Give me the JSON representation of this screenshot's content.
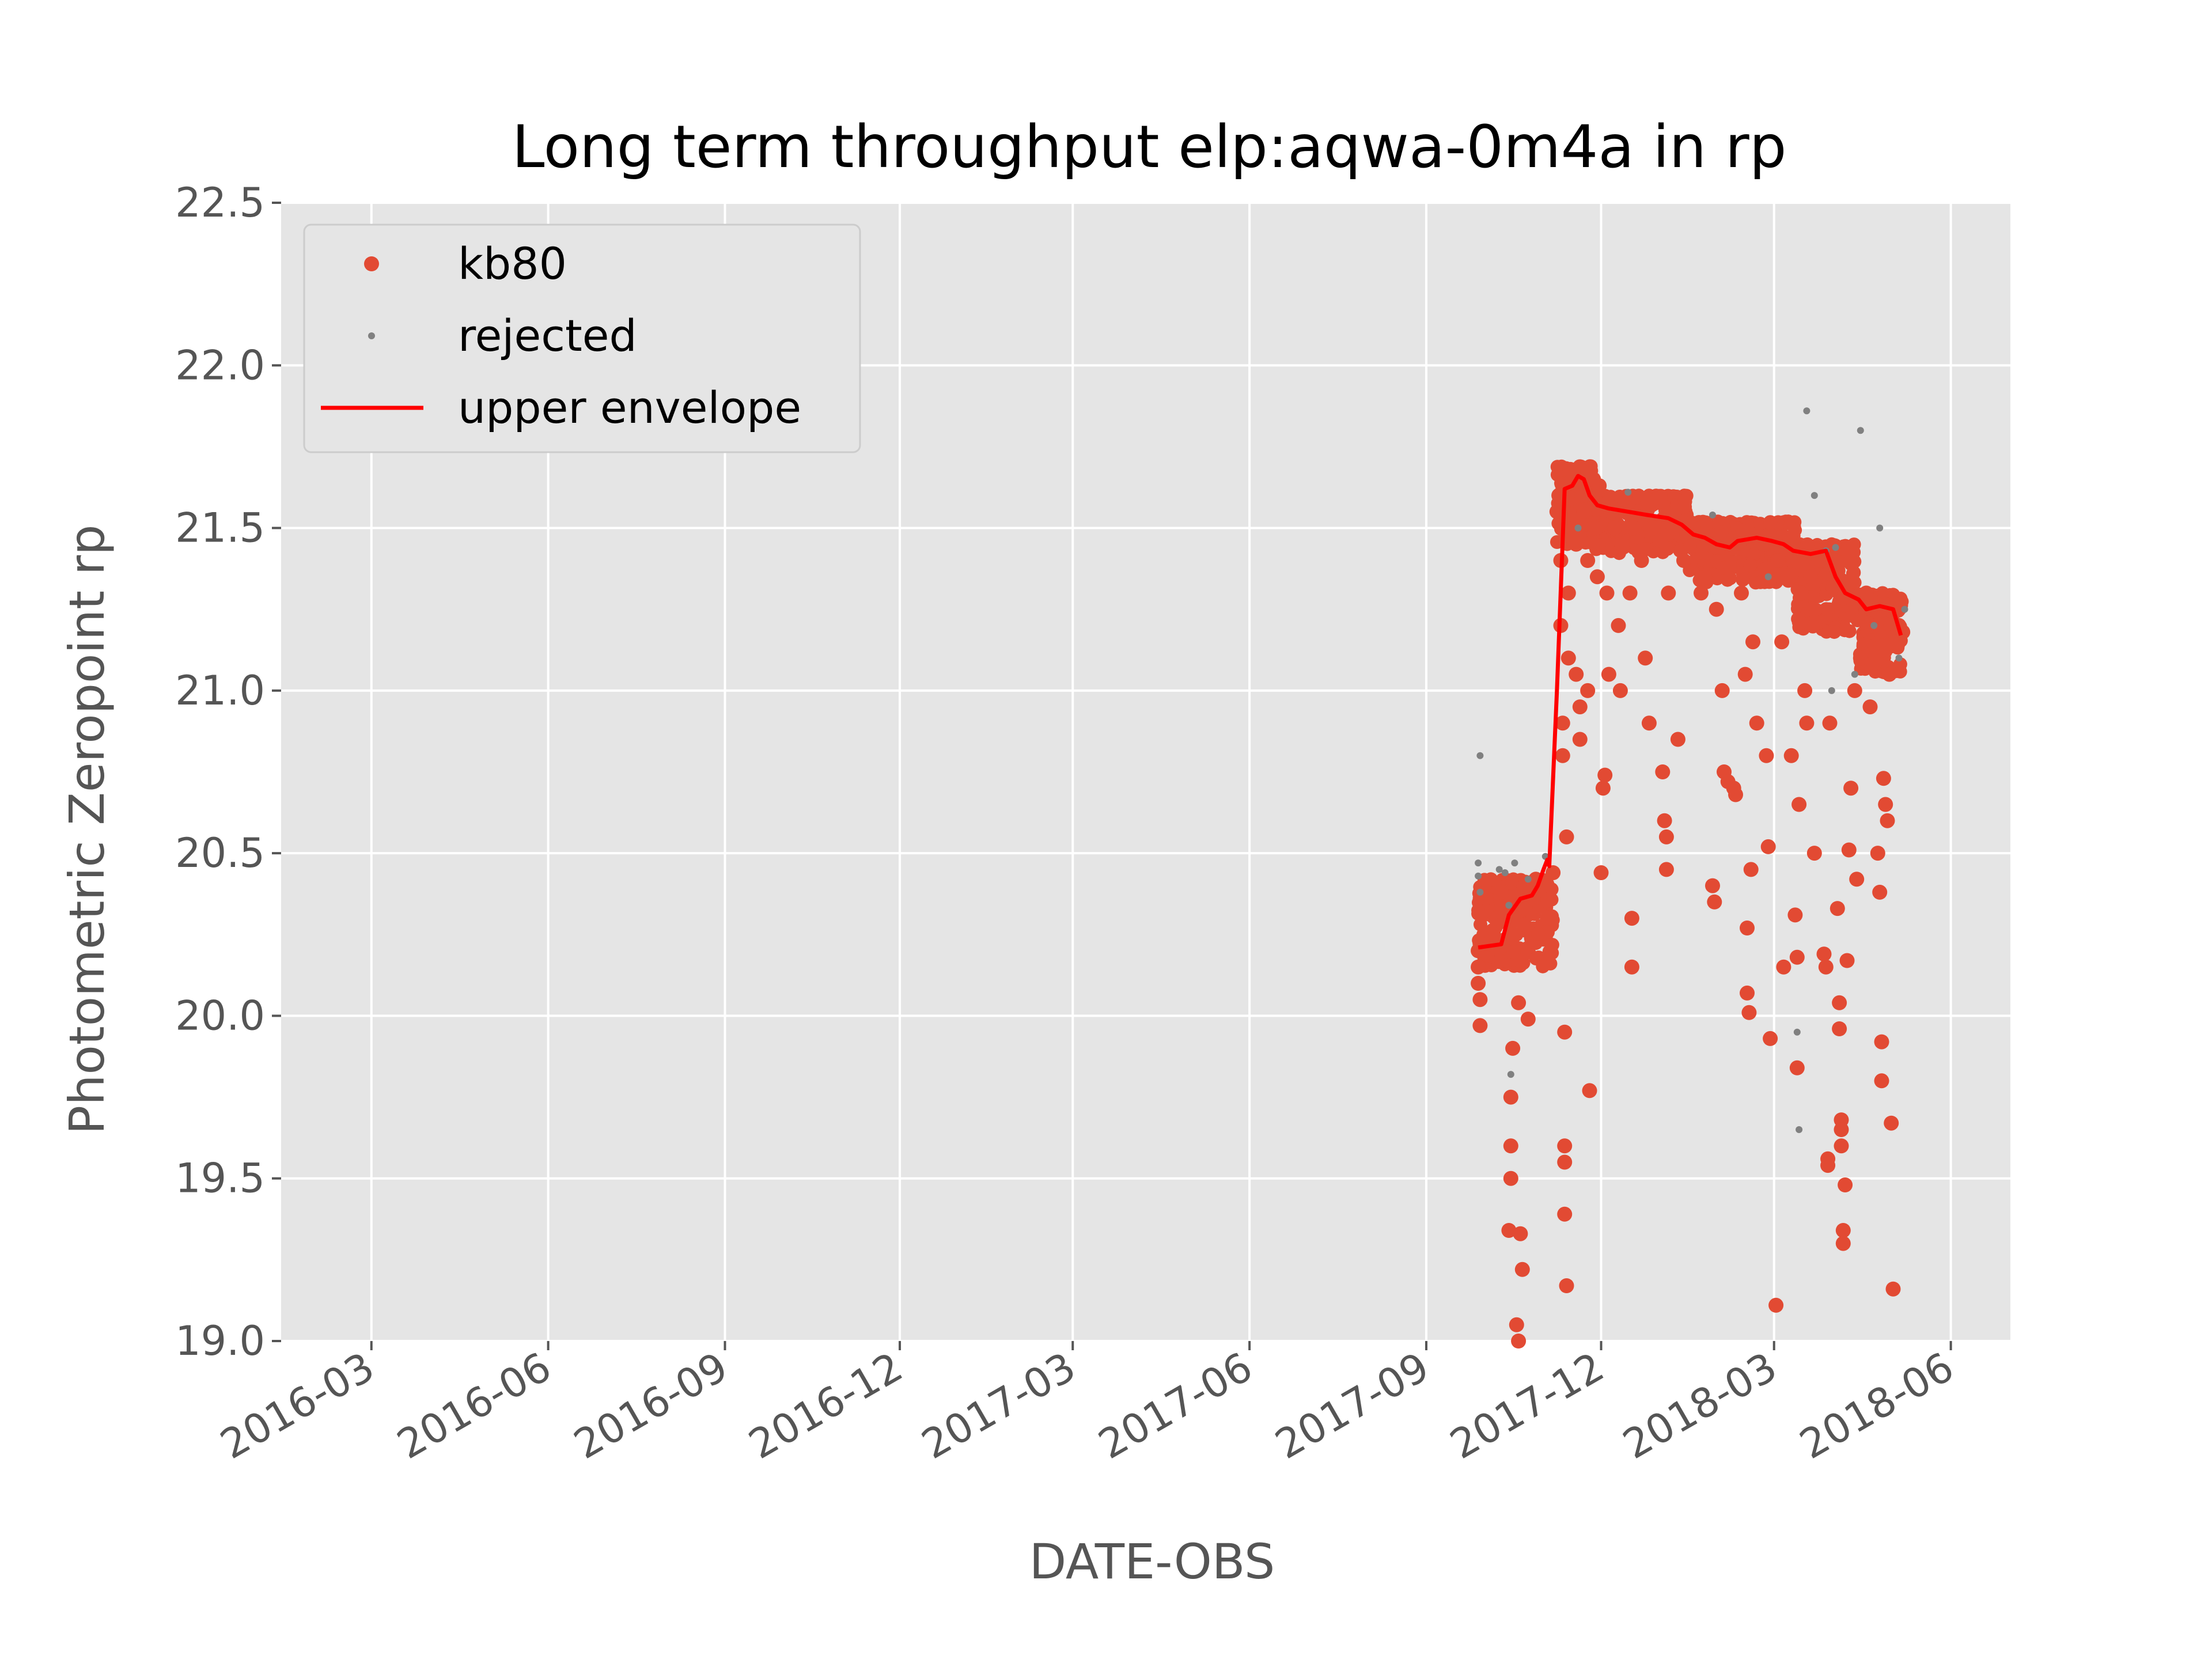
{
  "chart_data": {
    "type": "scatter",
    "title": "Long term throughput  elp:aqwa-0m4a in rp",
    "xlabel": "DATE-OBS",
    "ylabel": "Photometric Zeropoint rp",
    "xlim": [
      "2016-01-14",
      "2018-07-02"
    ],
    "ylim": [
      19.0,
      22.5
    ],
    "x_ticks": [
      "2016-03",
      "2016-06",
      "2016-09",
      "2016-12",
      "2017-03",
      "2017-06",
      "2017-09",
      "2017-12",
      "2018-03",
      "2018-06"
    ],
    "y_ticks": [
      "19.0",
      "19.5",
      "20.0",
      "20.5",
      "21.0",
      "21.5",
      "22.0",
      "22.5"
    ],
    "grid": true,
    "legend_position": "top-left",
    "colors": {
      "kb80": "#e24a33",
      "rejected": "#808080",
      "upper envelope": "#ff0000",
      "background": "#e5e5e5",
      "grid": "#ffffff"
    },
    "series": [
      {
        "name": "kb80",
        "marker": "dot",
        "points": [
          [
            "2017-09-28",
            20.2
          ],
          [
            "2017-09-28",
            20.1
          ],
          [
            "2017-09-28",
            20.15
          ],
          [
            "2017-09-29",
            19.97
          ],
          [
            "2017-09-29",
            20.05
          ],
          [
            "2017-10-01",
            20.25
          ],
          [
            "2017-10-03",
            20.22
          ],
          [
            "2017-10-06",
            20.25
          ],
          [
            "2017-10-08",
            20.3
          ],
          [
            "2017-10-10",
            20.38
          ],
          [
            "2017-10-12",
            20.3
          ],
          [
            "2017-10-14",
            19.34
          ],
          [
            "2017-10-15",
            19.6
          ],
          [
            "2017-10-15",
            19.75
          ],
          [
            "2017-10-15",
            19.5
          ],
          [
            "2017-10-16",
            19.9
          ],
          [
            "2017-10-18",
            19.05
          ],
          [
            "2017-10-19",
            19.0
          ],
          [
            "2017-10-19",
            20.04
          ],
          [
            "2017-10-20",
            19.33
          ],
          [
            "2017-10-21",
            19.22
          ],
          [
            "2017-10-22",
            20.28
          ],
          [
            "2017-10-25",
            20.38
          ],
          [
            "2017-10-24",
            19.99
          ],
          [
            "2017-10-28",
            20.42
          ],
          [
            "2017-11-01",
            20.4
          ],
          [
            "2017-11-03",
            20.3
          ],
          [
            "2017-11-06",
            20.44
          ],
          [
            "2017-11-08",
            21.55
          ],
          [
            "2017-11-09",
            21.6
          ],
          [
            "2017-11-10",
            21.4
          ],
          [
            "2017-11-10",
            21.2
          ],
          [
            "2017-11-11",
            20.9
          ],
          [
            "2017-11-11",
            20.8
          ],
          [
            "2017-11-12",
            19.95
          ],
          [
            "2017-11-12",
            19.6
          ],
          [
            "2017-11-12",
            19.55
          ],
          [
            "2017-11-12",
            19.39
          ],
          [
            "2017-11-13",
            19.17
          ],
          [
            "2017-11-13",
            20.55
          ],
          [
            "2017-11-14",
            21.1
          ],
          [
            "2017-11-14",
            21.3
          ],
          [
            "2017-11-15",
            21.68
          ],
          [
            "2017-11-16",
            21.65
          ],
          [
            "2017-11-17",
            21.5
          ],
          [
            "2017-11-18",
            21.45
          ],
          [
            "2017-11-18",
            21.05
          ],
          [
            "2017-11-20",
            20.85
          ],
          [
            "2017-11-20",
            20.95
          ],
          [
            "2017-11-21",
            21.6
          ],
          [
            "2017-11-22",
            21.55
          ],
          [
            "2017-11-24",
            21.4
          ],
          [
            "2017-11-24",
            21.0
          ],
          [
            "2017-11-25",
            19.77
          ],
          [
            "2017-11-27",
            21.65
          ],
          [
            "2017-11-28",
            21.5
          ],
          [
            "2017-11-29",
            21.35
          ],
          [
            "2017-11-30",
            21.63
          ],
          [
            "2017-12-01",
            20.44
          ],
          [
            "2017-12-02",
            20.7
          ],
          [
            "2017-12-03",
            20.74
          ],
          [
            "2017-12-04",
            21.3
          ],
          [
            "2017-12-05",
            21.05
          ],
          [
            "2017-12-06",
            21.55
          ],
          [
            "2017-12-08",
            21.5
          ],
          [
            "2017-12-10",
            21.2
          ],
          [
            "2017-12-11",
            21.0
          ],
          [
            "2017-12-12",
            21.45
          ],
          [
            "2017-12-14",
            21.55
          ],
          [
            "2017-12-16",
            21.3
          ],
          [
            "2017-12-17",
            20.3
          ],
          [
            "2017-12-17",
            20.15
          ],
          [
            "2017-12-18",
            21.5
          ],
          [
            "2017-12-20",
            21.55
          ],
          [
            "2017-12-22",
            21.4
          ],
          [
            "2017-12-24",
            21.1
          ],
          [
            "2017-12-26",
            20.9
          ],
          [
            "2017-12-28",
            21.5
          ],
          [
            "2018-01-02",
            20.75
          ],
          [
            "2018-01-03",
            20.6
          ],
          [
            "2018-01-04",
            20.55
          ],
          [
            "2018-01-04",
            20.45
          ],
          [
            "2018-01-05",
            21.3
          ],
          [
            "2018-01-08",
            21.5
          ],
          [
            "2018-01-10",
            20.85
          ],
          [
            "2018-01-13",
            21.4
          ],
          [
            "2018-01-18",
            21.5
          ],
          [
            "2018-01-22",
            21.3
          ],
          [
            "2018-01-26",
            21.45
          ],
          [
            "2018-01-28",
            20.4
          ],
          [
            "2018-01-29",
            20.35
          ],
          [
            "2018-01-30",
            21.25
          ],
          [
            "2018-02-02",
            21.0
          ],
          [
            "2018-02-03",
            20.75
          ],
          [
            "2018-02-05",
            20.72
          ],
          [
            "2018-02-06",
            21.45
          ],
          [
            "2018-02-08",
            20.7
          ],
          [
            "2018-02-09",
            20.68
          ],
          [
            "2018-02-12",
            21.3
          ],
          [
            "2018-02-14",
            21.05
          ],
          [
            "2018-02-15",
            20.27
          ],
          [
            "2018-02-15",
            20.07
          ],
          [
            "2018-02-16",
            20.01
          ],
          [
            "2018-02-17",
            20.45
          ],
          [
            "2018-02-18",
            21.15
          ],
          [
            "2018-02-20",
            20.9
          ],
          [
            "2018-02-24",
            21.45
          ],
          [
            "2018-02-25",
            20.8
          ],
          [
            "2018-02-26",
            20.52
          ],
          [
            "2018-02-27",
            19.93
          ],
          [
            "2018-03-02",
            19.11
          ],
          [
            "2018-03-03",
            21.4
          ],
          [
            "2018-03-05",
            21.15
          ],
          [
            "2018-03-06",
            20.15
          ],
          [
            "2018-03-08",
            21.35
          ],
          [
            "2018-03-10",
            20.8
          ],
          [
            "2018-03-12",
            20.31
          ],
          [
            "2018-03-13",
            20.18
          ],
          [
            "2018-03-13",
            19.84
          ],
          [
            "2018-03-14",
            20.65
          ],
          [
            "2018-03-15",
            21.3
          ],
          [
            "2018-03-17",
            21.0
          ],
          [
            "2018-03-18",
            20.9
          ],
          [
            "2018-03-20",
            21.35
          ],
          [
            "2018-03-22",
            20.5
          ],
          [
            "2018-03-25",
            21.4
          ],
          [
            "2018-03-27",
            20.19
          ],
          [
            "2018-03-28",
            20.15
          ],
          [
            "2018-03-29",
            19.56
          ],
          [
            "2018-03-29",
            19.54
          ],
          [
            "2018-03-30",
            20.9
          ],
          [
            "2018-04-03",
            20.33
          ],
          [
            "2018-04-04",
            20.04
          ],
          [
            "2018-04-04",
            19.96
          ],
          [
            "2018-04-05",
            19.68
          ],
          [
            "2018-04-05",
            19.6
          ],
          [
            "2018-04-05",
            19.65
          ],
          [
            "2018-04-06",
            19.34
          ],
          [
            "2018-04-06",
            19.3
          ],
          [
            "2018-04-07",
            19.48
          ],
          [
            "2018-04-08",
            20.17
          ],
          [
            "2018-04-09",
            20.51
          ],
          [
            "2018-04-10",
            20.7
          ],
          [
            "2018-04-12",
            21.0
          ],
          [
            "2018-04-13",
            20.42
          ],
          [
            "2018-04-15",
            21.1
          ],
          [
            "2018-04-18",
            21.3
          ],
          [
            "2018-04-20",
            20.95
          ],
          [
            "2018-04-23",
            21.2
          ],
          [
            "2018-04-24",
            20.5
          ],
          [
            "2018-04-25",
            20.38
          ],
          [
            "2018-04-26",
            19.92
          ],
          [
            "2018-04-26",
            19.8
          ],
          [
            "2018-04-27",
            20.73
          ],
          [
            "2018-04-28",
            20.65
          ],
          [
            "2018-04-29",
            20.6
          ],
          [
            "2018-04-30",
            21.05
          ],
          [
            "2018-05-01",
            19.67
          ],
          [
            "2018-05-02",
            19.16
          ],
          [
            "2018-05-03",
            21.15
          ],
          [
            "2018-05-05",
            21.2
          ],
          [
            "2018-05-07",
            21.18
          ]
        ],
        "dense_bands": [
          {
            "from": "2017-09-28",
            "to": "2017-11-07",
            "y_low": 20.15,
            "y_high": 20.42
          },
          {
            "from": "2017-11-08",
            "to": "2017-11-26",
            "y_low": 21.45,
            "y_high": 21.69
          },
          {
            "from": "2017-11-27",
            "to": "2018-01-15",
            "y_low": 21.42,
            "y_high": 21.6
          },
          {
            "from": "2018-01-16",
            "to": "2018-03-12",
            "y_low": 21.33,
            "y_high": 21.52
          },
          {
            "from": "2018-03-13",
            "to": "2018-04-12",
            "y_low": 21.18,
            "y_high": 21.45
          },
          {
            "from": "2018-04-13",
            "to": "2018-05-07",
            "y_low": 21.05,
            "y_high": 21.3
          }
        ]
      },
      {
        "name": "rejected",
        "marker": "small-dot",
        "points": [
          [
            "2017-09-29",
            20.8
          ],
          [
            "2017-09-28",
            20.47
          ],
          [
            "2017-09-28",
            20.43
          ],
          [
            "2017-09-29",
            20.38
          ],
          [
            "2017-10-09",
            20.45
          ],
          [
            "2017-10-12",
            20.44
          ],
          [
            "2017-10-14",
            20.34
          ],
          [
            "2017-10-15",
            19.82
          ],
          [
            "2017-10-17",
            20.47
          ],
          [
            "2017-10-24",
            20.42
          ],
          [
            "2017-11-02",
            20.49
          ],
          [
            "2017-12-15",
            21.61
          ],
          [
            "2018-01-28",
            21.54
          ],
          [
            "2018-03-18",
            21.86
          ],
          [
            "2018-03-22",
            21.6
          ],
          [
            "2018-03-13",
            19.95
          ],
          [
            "2018-03-14",
            19.65
          ],
          [
            "2018-03-28",
            21.43
          ],
          [
            "2018-04-02",
            21.44
          ],
          [
            "2018-04-15",
            21.8
          ],
          [
            "2018-04-25",
            21.5
          ],
          [
            "2018-04-22",
            21.2
          ],
          [
            "2018-05-05",
            21.1
          ],
          [
            "2018-05-08",
            21.25
          ],
          [
            "2018-04-12",
            21.05
          ],
          [
            "2018-03-31",
            21.0
          ],
          [
            "2017-11-19",
            21.5
          ],
          [
            "2018-02-26",
            21.35
          ]
        ]
      },
      {
        "name": "upper envelope",
        "type": "line",
        "points": [
          [
            "2017-09-28",
            20.21
          ],
          [
            "2017-10-10",
            20.22
          ],
          [
            "2017-10-14",
            20.31
          ],
          [
            "2017-10-20",
            20.36
          ],
          [
            "2017-10-26",
            20.37
          ],
          [
            "2017-10-29",
            20.4
          ],
          [
            "2017-11-01",
            20.45
          ],
          [
            "2017-11-03",
            20.48
          ],
          [
            "2017-11-04",
            20.46
          ],
          [
            "2017-11-08",
            21.0
          ],
          [
            "2017-11-12",
            21.62
          ],
          [
            "2017-11-16",
            21.63
          ],
          [
            "2017-11-19",
            21.66
          ],
          [
            "2017-11-22",
            21.65
          ],
          [
            "2017-11-25",
            21.6
          ],
          [
            "2017-11-29",
            21.57
          ],
          [
            "2017-12-05",
            21.56
          ],
          [
            "2017-12-15",
            21.55
          ],
          [
            "2017-12-25",
            21.54
          ],
          [
            "2018-01-05",
            21.53
          ],
          [
            "2018-01-12",
            21.51
          ],
          [
            "2018-01-18",
            21.48
          ],
          [
            "2018-01-24",
            21.47
          ],
          [
            "2018-01-30",
            21.45
          ],
          [
            "2018-02-06",
            21.44
          ],
          [
            "2018-02-10",
            21.46
          ],
          [
            "2018-02-20",
            21.47
          ],
          [
            "2018-02-28",
            21.46
          ],
          [
            "2018-03-06",
            21.45
          ],
          [
            "2018-03-11",
            21.43
          ],
          [
            "2018-03-20",
            21.42
          ],
          [
            "2018-03-28",
            21.43
          ],
          [
            "2018-04-02",
            21.35
          ],
          [
            "2018-04-07",
            21.3
          ],
          [
            "2018-04-14",
            21.28
          ],
          [
            "2018-04-18",
            21.25
          ],
          [
            "2018-04-25",
            21.26
          ],
          [
            "2018-05-02",
            21.25
          ],
          [
            "2018-05-06",
            21.17
          ]
        ]
      }
    ]
  }
}
